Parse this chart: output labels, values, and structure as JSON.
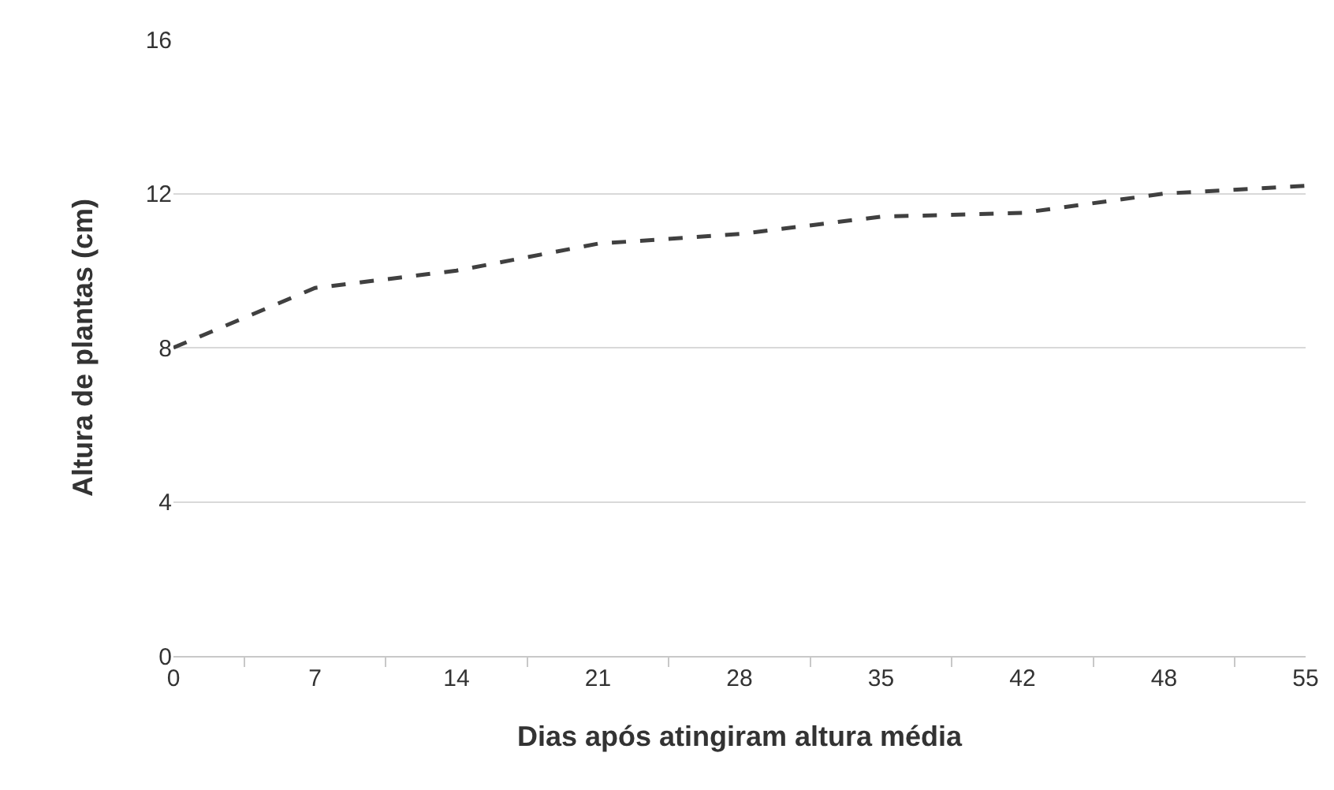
{
  "chart_data": {
    "type": "line",
    "xlabel": "Dias após atingiram altura média",
    "ylabel": "Altura de plantas (cm)",
    "categories": [
      "0",
      "7",
      "14",
      "21",
      "28",
      "35",
      "42",
      "48",
      "55"
    ],
    "series": [
      {
        "color": "#404040",
        "values": [
          8.0,
          9.55,
          10.0,
          10.7,
          10.95,
          11.4,
          11.5,
          12.0,
          12.2
        ]
      }
    ],
    "ylim": [
      0,
      16
    ],
    "yticks": [
      0,
      4,
      8,
      12,
      16
    ],
    "grid": "y",
    "line_style": "dashed",
    "marker": "none"
  }
}
